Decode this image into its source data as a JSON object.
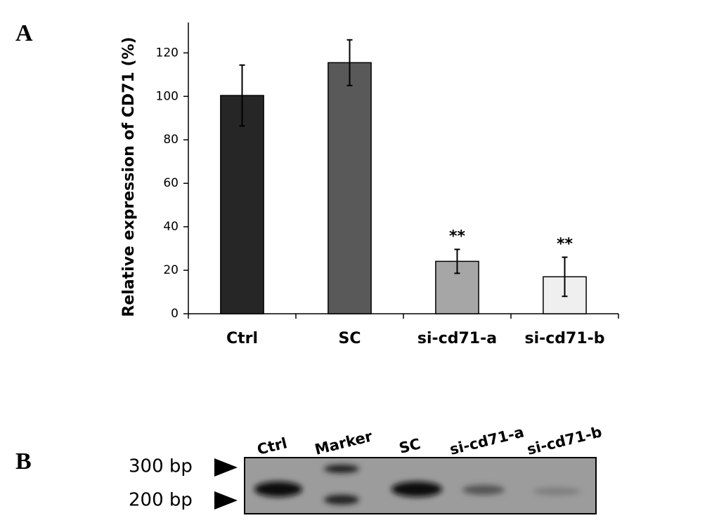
{
  "chart_data": {
    "type": "bar",
    "ylabel": "Relative expression of CD71 (%)",
    "categories": [
      "Ctrl",
      "SC",
      "si-cd71-a",
      "si-cd71-b"
    ],
    "values": [
      100.4,
      115.5,
      24.1,
      17
    ],
    "errors": [
      14,
      10.5,
      5.5,
      9
    ],
    "colors": [
      "#262626",
      "#595959",
      "#a6a6a6",
      "#efefef"
    ],
    "annotations": [
      {
        "category": "si-cd71-a",
        "text": "**"
      },
      {
        "category": "si-cd71-b",
        "text": "**"
      }
    ],
    "ylim": [
      0,
      134
    ],
    "yticks": [
      0,
      20,
      40,
      60,
      80,
      100,
      120
    ],
    "grid": false
  },
  "panel_labels": [
    "A",
    "B"
  ],
  "gel": {
    "lanes": [
      "Ctrl",
      "Marker",
      "SC",
      "si-cd71-a",
      "si-cd71-b"
    ],
    "size_markers": [
      "300 bp",
      "200 bp"
    ]
  }
}
